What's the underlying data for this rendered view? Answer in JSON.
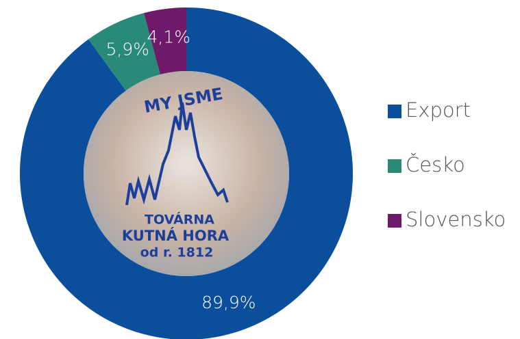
{
  "chart_data": {
    "type": "donut",
    "categories": [
      "Export",
      "Česko",
      "Slovensko"
    ],
    "values": [
      89.9,
      5.9,
      4.1
    ],
    "value_labels": [
      "89,9%",
      "5,9%",
      "4,1%"
    ],
    "colors": [
      "#0b4f9c",
      "#2a8a7a",
      "#6e1a6b"
    ],
    "legend": "right",
    "center_texts": [
      "MY JSME",
      "TOVÁRNA",
      "KUTNÁ HORA",
      "od r. 1812"
    ]
  }
}
